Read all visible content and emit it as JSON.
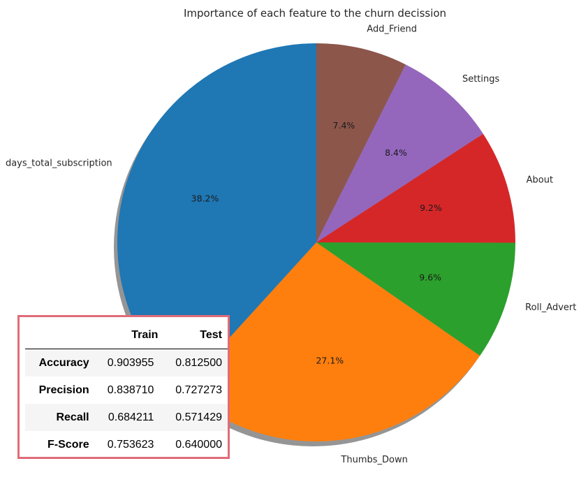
{
  "chart_data": {
    "type": "pie",
    "title": "Importance of each feature to the churn decission",
    "labels": [
      "days_total_subscription",
      "Thumbs_Down",
      "Roll_Advert",
      "About",
      "Settings",
      "Add_Friend"
    ],
    "values": [
      38.2,
      27.1,
      9.6,
      9.2,
      8.4,
      7.4
    ],
    "value_labels": [
      "38.2%",
      "27.1%",
      "9.6%",
      "9.2%",
      "8.4%",
      "7.4%"
    ],
    "colors": [
      "#1f77b4",
      "#ff7f0e",
      "#2ca02c",
      "#d62728",
      "#9467bd",
      "#8c564b"
    ],
    "start_angle_deg": 90,
    "direction": "counterclockwise",
    "shadow": true
  },
  "metrics_table": {
    "columns": [
      "",
      "Train",
      "Test"
    ],
    "rows": [
      {
        "metric": "Accuracy",
        "train": "0.903955",
        "test": "0.812500"
      },
      {
        "metric": "Precision",
        "train": "0.838710",
        "test": "0.727273"
      },
      {
        "metric": "Recall",
        "train": "0.684211",
        "test": "0.571429"
      },
      {
        "metric": "F-Score",
        "train": "0.753623",
        "test": "0.640000"
      }
    ],
    "border_color": "#e06c78"
  }
}
